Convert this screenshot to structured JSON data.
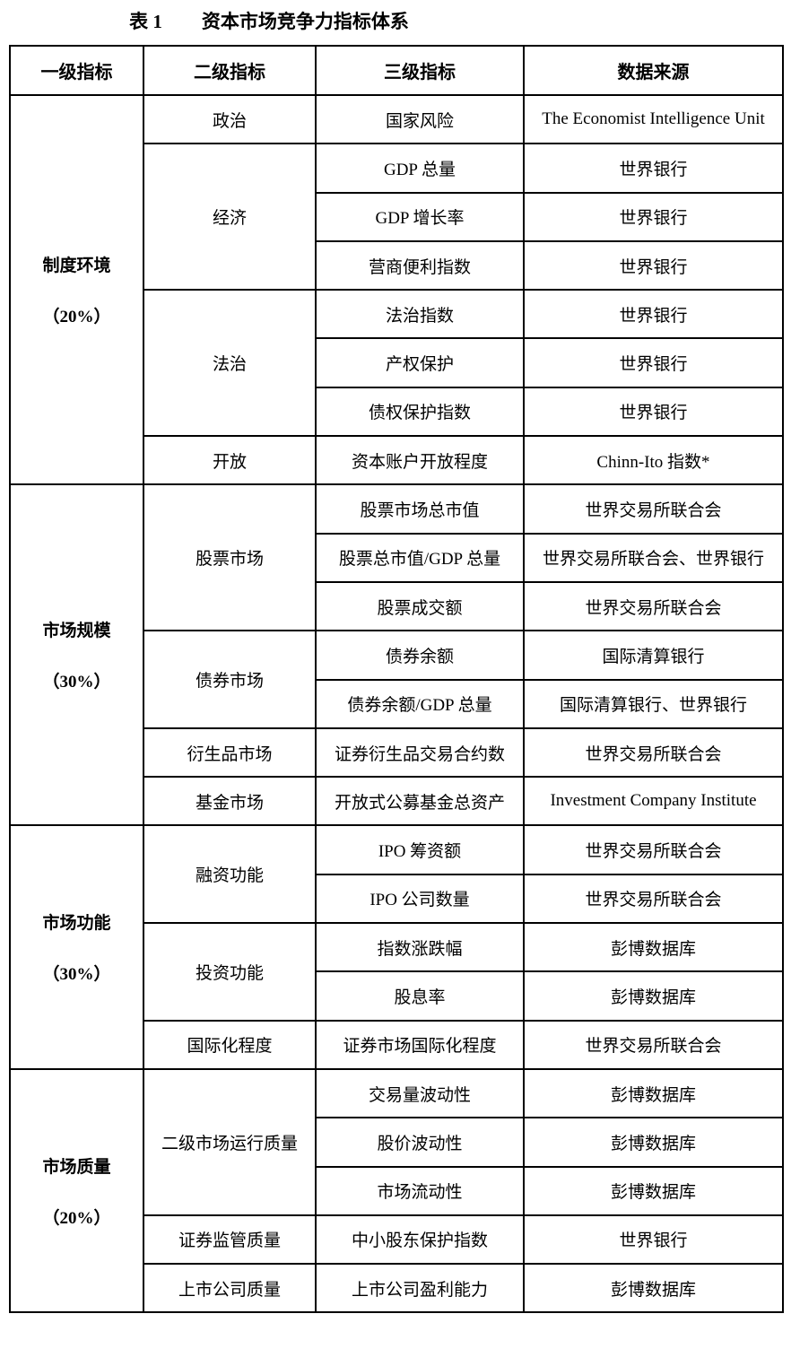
{
  "title": {
    "number": "表 1",
    "text": "资本市场竞争力指标体系"
  },
  "headers": [
    "一级指标",
    "二级指标",
    "三级指标",
    "数据来源"
  ],
  "groups": [
    {
      "name": "制度环境",
      "weight": "（20%）",
      "subs": [
        {
          "name": "政治",
          "items": [
            [
              "国家风险",
              "The Economist Intelligence Unit"
            ]
          ]
        },
        {
          "name": "经济",
          "items": [
            [
              "GDP 总量",
              "世界银行"
            ],
            [
              "GDP 增长率",
              "世界银行"
            ],
            [
              "营商便利指数",
              "世界银行"
            ]
          ]
        },
        {
          "name": "法治",
          "items": [
            [
              "法治指数",
              "世界银行"
            ],
            [
              "产权保护",
              "世界银行"
            ],
            [
              "债权保护指数",
              "世界银行"
            ]
          ]
        },
        {
          "name": "开放",
          "items": [
            [
              "资本账户开放程度",
              "Chinn-Ito 指数*"
            ]
          ]
        }
      ]
    },
    {
      "name": "市场规模",
      "weight": "（30%）",
      "subs": [
        {
          "name": "股票市场",
          "items": [
            [
              "股票市场总市值",
              "世界交易所联合会"
            ],
            [
              "股票总市值/GDP 总量",
              "世界交易所联合会、世界银行"
            ],
            [
              "股票成交额",
              "世界交易所联合会"
            ]
          ]
        },
        {
          "name": "债券市场",
          "items": [
            [
              "债券余额",
              "国际清算银行"
            ],
            [
              "债券余额/GDP 总量",
              "国际清算银行、世界银行"
            ]
          ]
        },
        {
          "name": "衍生品市场",
          "items": [
            [
              "证券衍生品交易合约数",
              "世界交易所联合会"
            ]
          ]
        },
        {
          "name": "基金市场",
          "items": [
            [
              "开放式公募基金总资产",
              "Investment Company Institute"
            ]
          ]
        }
      ]
    },
    {
      "name": "市场功能",
      "weight": "（30%）",
      "subs": [
        {
          "name": "融资功能",
          "items": [
            [
              "IPO 筹资额",
              "世界交易所联合会"
            ],
            [
              "IPO 公司数量",
              "世界交易所联合会"
            ]
          ]
        },
        {
          "name": "投资功能",
          "items": [
            [
              "指数涨跌幅",
              "彭博数据库"
            ],
            [
              "股息率",
              "彭博数据库"
            ]
          ]
        },
        {
          "name": "国际化程度",
          "items": [
            [
              "证券市场国际化程度",
              "世界交易所联合会"
            ]
          ]
        }
      ]
    },
    {
      "name": "市场质量",
      "weight": "（20%）",
      "subs": [
        {
          "name": "二级市场运行质量",
          "items": [
            [
              "交易量波动性",
              "彭博数据库"
            ],
            [
              "股价波动性",
              "彭博数据库"
            ],
            [
              "市场流动性",
              "彭博数据库"
            ]
          ]
        },
        {
          "name": "证券监管质量",
          "items": [
            [
              "中小股东保护指数",
              "世界银行"
            ]
          ]
        },
        {
          "name": "上市公司质量",
          "items": [
            [
              "上市公司盈利能力",
              "彭博数据库"
            ]
          ]
        }
      ]
    }
  ]
}
